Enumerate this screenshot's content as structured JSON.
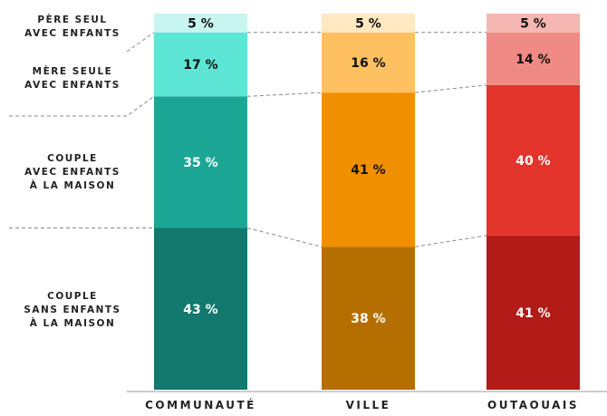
{
  "chart_data": {
    "type": "stacked-bar",
    "categories": [
      "COMMUNAUTÉ",
      "VILLE",
      "OUTAOUAIS"
    ],
    "series": [
      {
        "name": "COUPLE\nSANS ENFANTS\nÀ LA MAISON",
        "colors": [
          "#13786e",
          "#b56f00",
          "#b31b18"
        ],
        "values": [
          43,
          38,
          41
        ],
        "value_labels": [
          "43 %",
          "38 %",
          "41 %"
        ]
      },
      {
        "name": "COUPLE\nAVEC ENFANTS\nÀ LA MAISON",
        "colors": [
          "#1ba696",
          "#f09000",
          "#e3342c"
        ],
        "values": [
          35,
          41,
          40
        ],
        "value_labels": [
          "35 %",
          "41 %",
          "40 %"
        ]
      },
      {
        "name": "MÈRE SEULE\nAVEC ENFANTS",
        "colors": [
          "#5de6d6",
          "#ffc061",
          "#f08a84"
        ],
        "values": [
          17,
          16,
          14
        ],
        "value_labels": [
          "17 %",
          "16 %",
          "14 %"
        ]
      },
      {
        "name": "PÈRE SEUL\nAVEC ENFANTS",
        "colors": [
          "#c8f5ef",
          "#ffe8c2",
          "#f5b7b2"
        ],
        "values": [
          5,
          5,
          5
        ],
        "value_labels": [
          "5 %",
          "5 %",
          "5 %"
        ]
      }
    ],
    "ylim": [
      0,
      100
    ]
  }
}
